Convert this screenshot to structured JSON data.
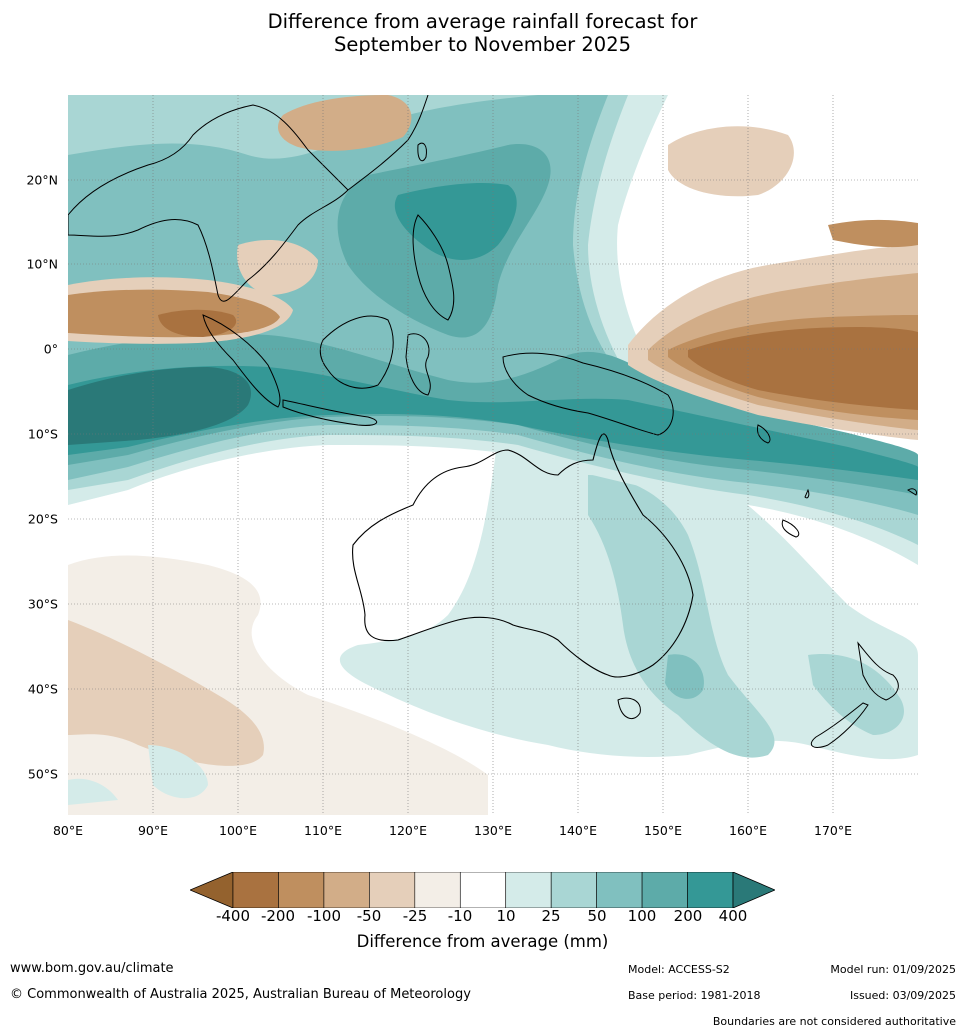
{
  "title": {
    "line1": "Difference from average rainfall forecast for",
    "line2": "September to November 2025"
  },
  "map": {
    "longitude_labels": [
      "80°E",
      "90°E",
      "100°E",
      "110°E",
      "120°E",
      "130°E",
      "140°E",
      "150°E",
      "160°E",
      "170°E"
    ],
    "latitude_labels": [
      "20°N",
      "10°N",
      "0°",
      "10°S",
      "20°S",
      "30°S",
      "40°S",
      "50°S"
    ],
    "extent": {
      "lon": [
        80,
        180
      ],
      "lat": [
        -55,
        30
      ]
    }
  },
  "legend": {
    "label": "Difference from average (mm)",
    "ticks": [
      "-400",
      "-200",
      "-100",
      "-50",
      "-25",
      "-10",
      "10",
      "25",
      "50",
      "100",
      "200",
      "400"
    ],
    "colors": {
      "below_min": "#94622e",
      "bins": [
        "#a97240",
        "#bf8f5f",
        "#d2ad88",
        "#e5cfba",
        "#f3eee7",
        "#ffffff",
        "#d4ebe9",
        "#a9d6d4",
        "#80c0bf",
        "#5daba9",
        "#349896"
      ],
      "above_max": "#2a7978"
    }
  },
  "footer": {
    "website": "www.bom.gov.au/climate",
    "copyright": "© Commonwealth of Australia 2025, Australian Bureau of Meteorology",
    "model": "Model: ACCESS-S2",
    "base_period": "Base period: 1981-2018",
    "model_run": "Model run: 01/09/2025",
    "issued": "Issued: 03/09/2025",
    "boundaries_note": "Boundaries are not considered authoritative"
  }
}
